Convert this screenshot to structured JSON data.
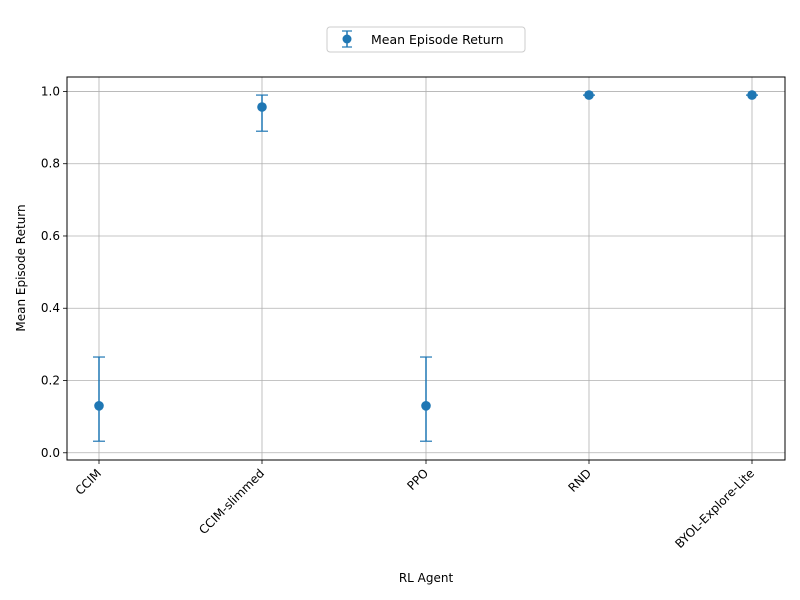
{
  "chart_data": {
    "type": "scatter",
    "categories": [
      "CCIM",
      "CCIM-slimmed",
      "PPO",
      "RND",
      "BYOL-Explore-Lite"
    ],
    "series": [
      {
        "name": "Mean Episode Return",
        "values": [
          0.13,
          0.957,
          0.13,
          0.99,
          0.99
        ],
        "err_low": [
          0.032,
          0.89,
          0.032,
          0.99,
          0.99
        ],
        "err_high": [
          0.265,
          0.99,
          0.265,
          0.99,
          0.99
        ]
      }
    ],
    "xlabel": "RL Agent",
    "ylabel": "Mean Episode Return",
    "ylim": [
      -0.02,
      1.04
    ],
    "yticks": [
      0.0,
      0.2,
      0.4,
      0.6,
      0.8,
      1.0
    ],
    "ytick_labels": [
      "0.0",
      "0.2",
      "0.4",
      "0.6",
      "0.8",
      "1.0"
    ],
    "grid": true,
    "legend_placement": "top-center",
    "colors": {
      "series": "#1f77b4",
      "grid": "#b0b0b0",
      "axes": "#000000"
    }
  }
}
